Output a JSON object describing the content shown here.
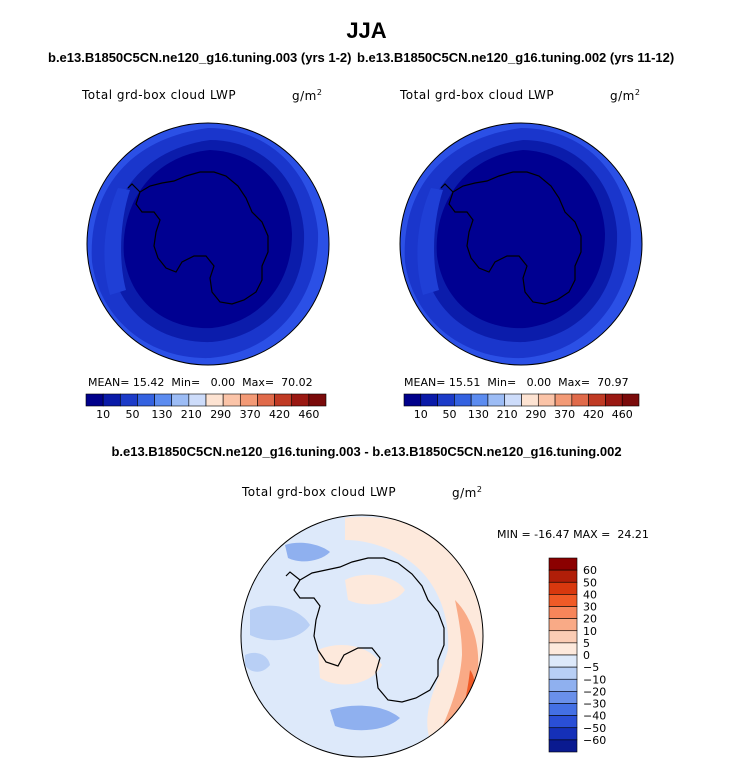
{
  "figure": {
    "season": "JJA",
    "case_a": "b.e13.B1850C5CN.ne120_g16.tuning.003 (yrs 1-2)",
    "case_b": "b.e13.B1850C5CN.ne120_g16.tuning.002 (yrs 11-12)",
    "diff_title": "b.e13.B1850C5CN.ne120_g16.tuning.003 - b.e13.B1850C5CN.ne120_g16.tuning.002"
  },
  "chart_data": [
    {
      "type": "heatmap",
      "projection": "polar-stereographic-south",
      "title": "b.e13.B1850C5CN.ne120_g16.tuning.003 (yrs 1-2)",
      "variable": "Total grd-box cloud LWP",
      "units": "g/m2",
      "stats": {
        "mean": "15.42",
        "min": "0.00",
        "max": "70.02"
      },
      "stats_text": {
        "mean_label": "MEAN=",
        "mean": "15.42",
        "min_label": "Min=",
        "min": "0.00",
        "max_label": "Max=",
        "max": "70.02"
      },
      "levels": [
        10,
        50,
        130,
        210,
        290,
        370,
        420,
        460
      ],
      "colors": [
        "#00008b",
        "#0a1aa8",
        "#1c3bc8",
        "#3462e0",
        "#5c8cf0",
        "#9cbcf5",
        "#cddcfa",
        "#fde3d2",
        "#fbc4a8",
        "#f39a76",
        "#e06a4a",
        "#c03a24",
        "#9a1812",
        "#7a0a0a"
      ]
    },
    {
      "type": "heatmap",
      "projection": "polar-stereographic-south",
      "title": "b.e13.B1850C5CN.ne120_g16.tuning.002 (yrs 11-12)",
      "variable": "Total grd-box cloud LWP",
      "units": "g/m2",
      "stats": {
        "mean": "15.51",
        "min": "0.00",
        "max": "70.97"
      },
      "stats_text": {
        "mean_label": "MEAN=",
        "mean": "15.51",
        "min_label": "Min=",
        "min": "0.00",
        "max_label": "Max=",
        "max": "70.97"
      },
      "levels": [
        10,
        50,
        130,
        210,
        290,
        370,
        420,
        460
      ],
      "colors": [
        "#00008b",
        "#0a1aa8",
        "#1c3bc8",
        "#3462e0",
        "#5c8cf0",
        "#9cbcf5",
        "#cddcfa",
        "#fde3d2",
        "#fbc4a8",
        "#f39a76",
        "#e06a4a",
        "#c03a24",
        "#9a1812",
        "#7a0a0a"
      ]
    },
    {
      "type": "heatmap",
      "projection": "polar-stereographic-south",
      "title": "b.e13.B1850C5CN.ne120_g16.tuning.003 - b.e13.B1850C5CN.ne120_g16.tuning.002",
      "variable": "Total grd-box cloud LWP",
      "units": "g/m2",
      "stats": {
        "min": "-16.47",
        "max": "24.21"
      },
      "stats_text": "MIN = -16.47 MAX =  24.21",
      "levels": [
        60,
        50,
        40,
        30,
        20,
        10,
        5,
        0,
        -5,
        -10,
        -20,
        -30,
        -40,
        -50,
        -60
      ],
      "colors": [
        "#8b0000",
        "#b01e08",
        "#d8380e",
        "#f05a26",
        "#f7855a",
        "#f9aa86",
        "#fbccb4",
        "#fde9dc",
        "#dde9fa",
        "#b8cff5",
        "#8fb0ef",
        "#6a90ea",
        "#4470e4",
        "#2a4fd6",
        "#1530b8",
        "#0a1a90"
      ]
    }
  ]
}
